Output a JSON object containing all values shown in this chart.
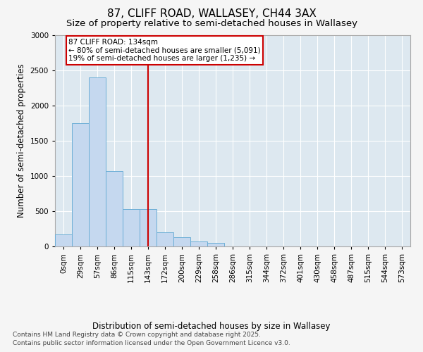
{
  "title_line1": "87, CLIFF ROAD, WALLASEY, CH44 3AX",
  "title_line2": "Size of property relative to semi-detached houses in Wallasey",
  "xlabel": "Distribution of semi-detached houses by size in Wallasey",
  "ylabel": "Number of semi-detached properties",
  "bin_labels": [
    "0sqm",
    "29sqm",
    "57sqm",
    "86sqm",
    "115sqm",
    "143sqm",
    "172sqm",
    "200sqm",
    "229sqm",
    "258sqm",
    "286sqm",
    "315sqm",
    "344sqm",
    "372sqm",
    "401sqm",
    "430sqm",
    "458sqm",
    "487sqm",
    "515sqm",
    "544sqm",
    "573sqm"
  ],
  "bar_values": [
    175,
    1750,
    2400,
    1075,
    530,
    530,
    200,
    130,
    75,
    50,
    0,
    0,
    0,
    0,
    0,
    0,
    0,
    0,
    0,
    0,
    0
  ],
  "bar_color": "#c5d8ef",
  "bar_edge_color": "#6baed6",
  "vline_x_index": 5,
  "annotation_text": "87 CLIFF ROAD: 134sqm\n← 80% of semi-detached houses are smaller (5,091)\n19% of semi-detached houses are larger (1,235) →",
  "annotation_box_facecolor": "#ffffff",
  "annotation_box_edgecolor": "#cc0000",
  "vline_color": "#cc0000",
  "ylim": [
    0,
    3000
  ],
  "yticks": [
    0,
    500,
    1000,
    1500,
    2000,
    2500,
    3000
  ],
  "fig_bg": "#f5f5f5",
  "plot_bg": "#dde8f0",
  "grid_color": "#ffffff",
  "footer_line1": "Contains HM Land Registry data © Crown copyright and database right 2025.",
  "footer_line2": "Contains public sector information licensed under the Open Government Licence v3.0.",
  "title_fontsize": 11,
  "subtitle_fontsize": 9.5,
  "axis_label_fontsize": 8.5,
  "tick_fontsize": 7.5,
  "annotation_fontsize": 7.5,
  "footer_fontsize": 6.5
}
